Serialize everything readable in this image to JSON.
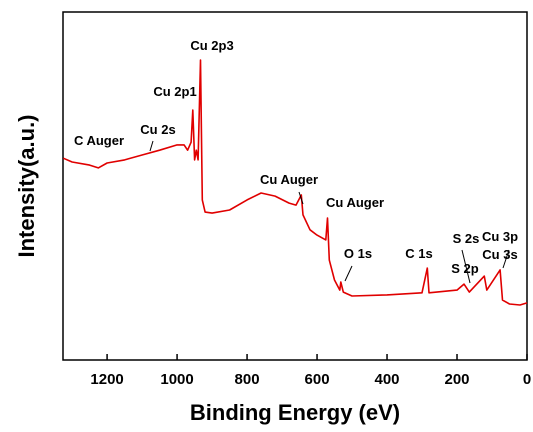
{
  "chart_data": {
    "type": "line",
    "x_label": "Binding Energy (eV)",
    "y_label": "Intensity(a.u.)",
    "xlim": [
      1326,
      0
    ],
    "ylim": [
      0,
      100
    ],
    "xticks": [
      1200,
      1000,
      800,
      600,
      400,
      200,
      0
    ],
    "x": [
      1325,
      1300,
      1250,
      1225,
      1200,
      1150,
      1100,
      1050,
      1000,
      980,
      970,
      960,
      955,
      950,
      945,
      940,
      933,
      928,
      920,
      900,
      850,
      800,
      760,
      720,
      680,
      660,
      645,
      640,
      620,
      600,
      575,
      570,
      565,
      550,
      535,
      532,
      525,
      500,
      400,
      300,
      285,
      280,
      200,
      180,
      165,
      122,
      115,
      77,
      70,
      50,
      20,
      0
    ],
    "series": [
      {
        "color": "#e00000",
        "values": [
          58.0,
          56.9,
          56.0,
          55.2,
          56.6,
          57.5,
          58.9,
          60.3,
          61.8,
          61.8,
          60.3,
          62.6,
          71.8,
          57.5,
          60.3,
          57.5,
          86.2,
          46.0,
          42.5,
          42.2,
          43.1,
          46.0,
          48.0,
          47.1,
          45.1,
          44.5,
          47.4,
          41.7,
          37.4,
          35.9,
          34.5,
          40.8,
          28.7,
          23.0,
          20.1,
          22.4,
          19.5,
          18.4,
          18.7,
          19.3,
          26.4,
          19.3,
          20.1,
          21.8,
          19.5,
          24.1,
          20.1,
          25.9,
          17.2,
          16.1,
          15.8,
          16.4
        ]
      }
    ],
    "annotations": [
      "C Auger",
      "Cu 2s",
      "Cu 2p1",
      "Cu 2p3",
      "Cu Auger",
      "Cu Auger",
      "O 1s",
      "C 1s",
      "S 2s",
      "S 2p",
      "Cu 3s",
      "Cu 3p"
    ]
  }
}
